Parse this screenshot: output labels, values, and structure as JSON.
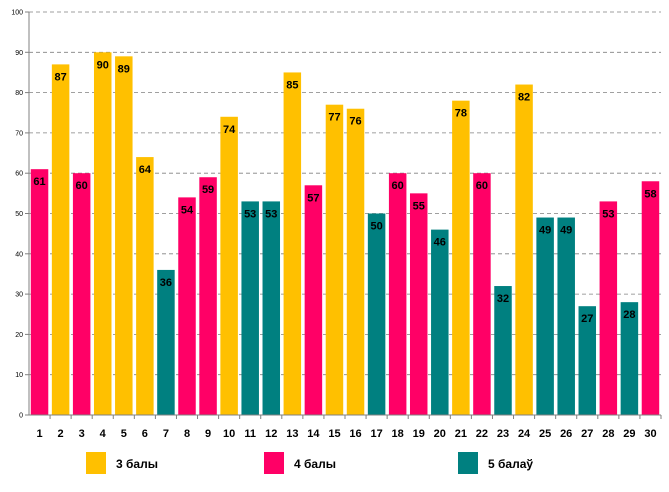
{
  "chart_data": {
    "type": "bar",
    "title": "",
    "xlabel": "",
    "ylabel": "",
    "ylim": [
      0,
      100
    ],
    "yticks": [
      0,
      10,
      20,
      30,
      40,
      50,
      60,
      70,
      80,
      90,
      100
    ],
    "grid": true,
    "categories": [
      "1",
      "2",
      "3",
      "4",
      "5",
      "6",
      "7",
      "8",
      "9",
      "10",
      "11",
      "12",
      "13",
      "14",
      "15",
      "16",
      "17",
      "18",
      "19",
      "20",
      "21",
      "22",
      "23",
      "24",
      "25",
      "26",
      "27",
      "28",
      "29",
      "30"
    ],
    "values": [
      61,
      87,
      60,
      90,
      89,
      64,
      36,
      54,
      59,
      74,
      53,
      53,
      85,
      57,
      77,
      76,
      50,
      60,
      55,
      46,
      78,
      60,
      32,
      82,
      49,
      49,
      27,
      53,
      28,
      58
    ],
    "groups": [
      "4",
      "3",
      "4",
      "3",
      "3",
      "3",
      "5",
      "4",
      "4",
      "3",
      "5",
      "5",
      "3",
      "4",
      "3",
      "3",
      "5",
      "4",
      "4",
      "5",
      "3",
      "4",
      "5",
      "3",
      "5",
      "5",
      "5",
      "4",
      "5",
      "4"
    ],
    "legend": [
      {
        "key": "3",
        "label": "3 балы",
        "color": "#FFC000"
      },
      {
        "key": "4",
        "label": "4 балы",
        "color": "#FF0066"
      },
      {
        "key": "5",
        "label": "5 балаў",
        "color": "#008080"
      }
    ]
  }
}
